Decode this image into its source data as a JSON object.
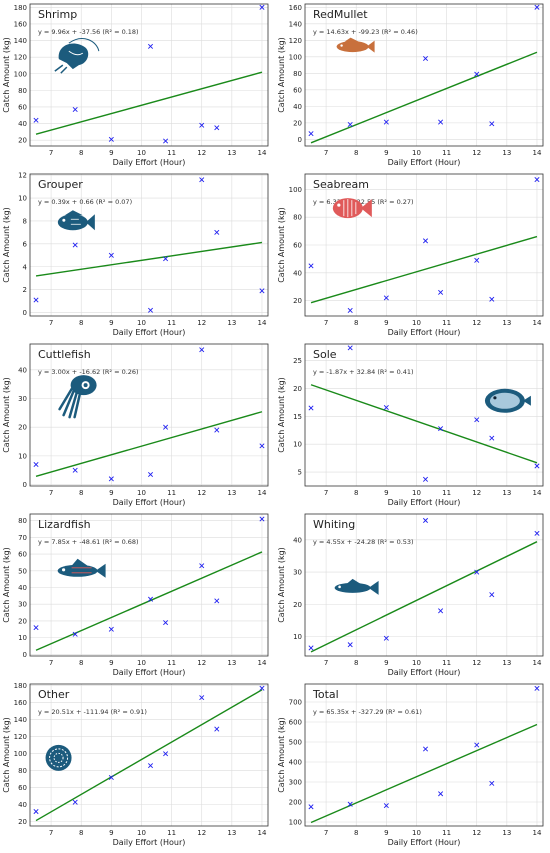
{
  "chart_data": [
    {
      "type": "scatter",
      "title": "Shrimp",
      "equation": "y = 9.96x + -37.56 (R² = 0.18)",
      "xlabel": "Daily Effort (Hour)",
      "ylabel": "Catch Amount (kg)",
      "xlim": [
        6.3,
        14.2
      ],
      "ylim": [
        13,
        184
      ],
      "xticks": [
        7,
        8,
        9,
        10,
        11,
        12,
        13,
        14
      ],
      "yticks": [
        20,
        40,
        60,
        80,
        100,
        120,
        140,
        160,
        180
      ],
      "slope": 9.96,
      "intercept": -37.56,
      "x": [
        6.5,
        7.8,
        9.0,
        10.3,
        10.8,
        12.0,
        12.5,
        14.0
      ],
      "y": [
        44,
        57,
        21,
        133,
        19,
        38,
        35,
        180
      ],
      "icon": "shrimp-icon"
    },
    {
      "type": "scatter",
      "title": "RedMullet",
      "equation": "y = 14.63x + -99.23 (R² = 0.46)",
      "xlabel": "Daily Effort (Hour)",
      "ylabel": "Catch Amount (kg)",
      "xlim": [
        6.3,
        14.2
      ],
      "ylim": [
        -8,
        164
      ],
      "xticks": [
        7,
        8,
        9,
        10,
        11,
        12,
        13,
        14
      ],
      "yticks": [
        0,
        20,
        40,
        60,
        80,
        100,
        120,
        140,
        160
      ],
      "slope": 14.63,
      "intercept": -99.23,
      "x": [
        6.5,
        7.8,
        9.0,
        10.3,
        10.8,
        12.0,
        12.5,
        14.0
      ],
      "y": [
        7,
        18,
        21,
        98,
        21,
        79,
        19,
        160
      ],
      "icon": "red-mullet-icon"
    },
    {
      "type": "scatter",
      "title": "Grouper",
      "equation": "y = 0.39x + 0.66 (R² = 0.07)",
      "xlabel": "Daily Effort (Hour)",
      "ylabel": "Catch Amount (kg)",
      "xlim": [
        6.3,
        14.2
      ],
      "ylim": [
        -0.3,
        12.1
      ],
      "xticks": [
        7,
        8,
        9,
        10,
        11,
        12,
        13,
        14
      ],
      "yticks": [
        0,
        2,
        4,
        6,
        8,
        10,
        12
      ],
      "slope": 0.39,
      "intercept": 0.66,
      "x": [
        6.5,
        7.8,
        9.0,
        10.3,
        10.8,
        12.0,
        12.5,
        14.0
      ],
      "y": [
        1.1,
        5.9,
        5.0,
        0.2,
        4.7,
        11.6,
        7.0,
        1.9
      ],
      "icon": "grouper-icon"
    },
    {
      "type": "scatter",
      "title": "Seabream",
      "equation": "y = 6.33x + -22.55 (R² = 0.27)",
      "xlabel": "Daily Effort (Hour)",
      "ylabel": "Catch Amount (kg)",
      "xlim": [
        6.3,
        14.2
      ],
      "ylim": [
        9,
        111
      ],
      "xticks": [
        7,
        8,
        9,
        10,
        11,
        12,
        13,
        14
      ],
      "yticks": [
        20,
        40,
        60,
        80,
        100
      ],
      "slope": 6.33,
      "intercept": -22.55,
      "x": [
        6.5,
        7.8,
        9.0,
        10.3,
        10.8,
        12.0,
        12.5,
        14.0
      ],
      "y": [
        45,
        13,
        22,
        63,
        26,
        49,
        21,
        107
      ],
      "icon": "seabream-icon"
    },
    {
      "type": "scatter",
      "title": "Cuttlefish",
      "equation": "y = 3.00x + -16.62 (R² = 0.26)",
      "xlabel": "Daily Effort (Hour)",
      "ylabel": "Catch Amount (kg)",
      "xlim": [
        6.3,
        14.2
      ],
      "ylim": [
        -0.5,
        49
      ],
      "xticks": [
        7,
        8,
        9,
        10,
        11,
        12,
        13,
        14
      ],
      "yticks": [
        0,
        10,
        20,
        30,
        40
      ],
      "slope": 3.0,
      "intercept": -16.62,
      "x": [
        6.5,
        7.8,
        9.0,
        10.3,
        10.8,
        12.0,
        12.5,
        14.0
      ],
      "y": [
        7,
        5,
        2,
        3.5,
        20,
        47,
        19,
        13.5
      ],
      "icon": "cuttlefish-icon"
    },
    {
      "type": "scatter",
      "title": "Sole",
      "equation": "y = -1.87x + 32.84 (R² = 0.41)",
      "xlabel": "Daily Effort (Hour)",
      "ylabel": "Catch Amount (kg)",
      "xlim": [
        6.3,
        14.2
      ],
      "ylim": [
        2.5,
        28
      ],
      "xticks": [
        7,
        8,
        9,
        10,
        11,
        12,
        13,
        14
      ],
      "yticks": [
        5,
        10,
        15,
        20,
        25
      ],
      "slope": -1.87,
      "intercept": 32.84,
      "x": [
        6.5,
        7.8,
        9.0,
        10.3,
        10.8,
        12.0,
        12.5,
        14.0
      ],
      "y": [
        16.5,
        27.3,
        16.6,
        3.7,
        12.8,
        14.4,
        11.1,
        6.1
      ],
      "icon": "sole-icon"
    },
    {
      "type": "scatter",
      "title": "Lizardfish",
      "equation": "y = 7.85x + -48.61 (R² = 0.68)",
      "xlabel": "Daily Effort (Hour)",
      "ylabel": "Catch Amount (kg)",
      "xlim": [
        6.3,
        14.2
      ],
      "ylim": [
        -1,
        84
      ],
      "xticks": [
        7,
        8,
        9,
        10,
        11,
        12,
        13,
        14
      ],
      "yticks": [
        0,
        10,
        20,
        30,
        40,
        50,
        60,
        70,
        80
      ],
      "slope": 7.85,
      "intercept": -48.61,
      "x": [
        6.5,
        7.8,
        9.0,
        10.3,
        10.8,
        12.0,
        12.5,
        14.0
      ],
      "y": [
        16,
        12,
        15,
        33,
        19,
        53,
        32,
        81
      ],
      "icon": "lizardfish-icon"
    },
    {
      "type": "scatter",
      "title": "Whiting",
      "equation": "y = 4.55x + -24.28 (R² = 0.53)",
      "xlabel": "Daily Effort (Hour)",
      "ylabel": "Catch Amount (kg)",
      "xlim": [
        6.3,
        14.2
      ],
      "ylim": [
        4,
        48
      ],
      "xticks": [
        7,
        8,
        9,
        10,
        11,
        12,
        13,
        14
      ],
      "yticks": [
        10,
        20,
        30,
        40
      ],
      "slope": 4.55,
      "intercept": -24.28,
      "x": [
        6.5,
        7.8,
        9.0,
        10.3,
        10.8,
        12.0,
        12.5,
        14.0
      ],
      "y": [
        6.5,
        7.5,
        9.5,
        46,
        18,
        30,
        23,
        42
      ],
      "icon": "whiting-icon"
    },
    {
      "type": "scatter",
      "title": "Other",
      "equation": "y = 20.51x + -111.94 (R² = 0.91)",
      "xlabel": "Daily Effort (Hour)",
      "ylabel": "Catch Amount (kg)",
      "xlim": [
        6.3,
        14.2
      ],
      "ylim": [
        15,
        182
      ],
      "xticks": [
        7,
        8,
        9,
        10,
        11,
        12,
        13,
        14
      ],
      "yticks": [
        20,
        40,
        60,
        80,
        100,
        120,
        140,
        160,
        180
      ],
      "slope": 20.51,
      "intercept": -111.94,
      "x": [
        6.5,
        7.8,
        9.0,
        10.3,
        10.8,
        12.0,
        12.5,
        14.0
      ],
      "y": [
        32,
        43,
        72,
        86,
        100,
        166,
        129,
        177
      ],
      "icon": "other-catch-icon"
    },
    {
      "type": "scatter",
      "title": "Total",
      "equation": "y = 65.35x + -327.29 (R² = 0.61)",
      "xlabel": "Daily Effort (Hour)",
      "ylabel": "Catch Amount (kg)",
      "xlim": [
        6.3,
        14.2
      ],
      "ylim": [
        80,
        790
      ],
      "xticks": [
        7,
        8,
        9,
        10,
        11,
        12,
        13,
        14
      ],
      "yticks": [
        100,
        200,
        300,
        400,
        500,
        600,
        700
      ],
      "slope": 65.35,
      "intercept": -327.29,
      "x": [
        6.5,
        7.8,
        9.0,
        10.3,
        10.8,
        12.0,
        12.5,
        14.0
      ],
      "y": [
        176,
        189,
        182,
        465,
        241,
        485,
        293,
        768
      ],
      "icon": ""
    }
  ],
  "colors": {
    "points": "#1f1ff0",
    "fit": "#1a8a1a",
    "icon_blue": "#1c5b7d",
    "icon_red": "#e05a5a",
    "icon_orange": "#c8703c"
  }
}
